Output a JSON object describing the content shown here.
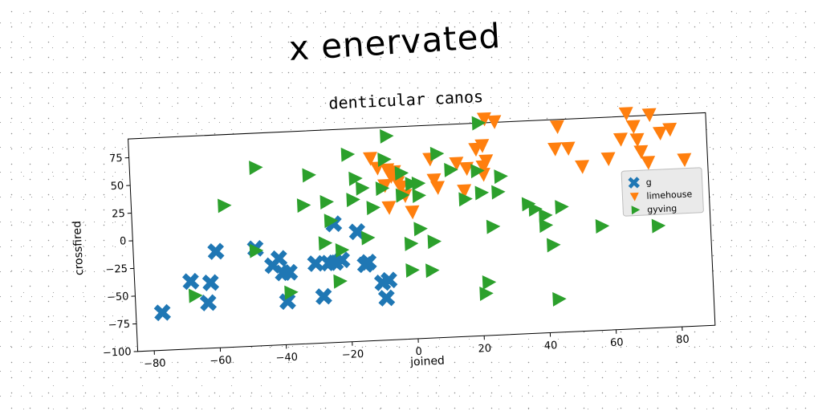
{
  "page_title": "x enervated",
  "chart_data": {
    "type": "scatter",
    "title": "denticular canos",
    "xlabel": "joined",
    "ylabel": "crossfired",
    "xlim": [
      -85,
      90
    ],
    "ylim": [
      -100,
      92
    ],
    "xticks": [
      -80,
      -60,
      -40,
      -20,
      0,
      20,
      40,
      60,
      80
    ],
    "yticks": [
      -100,
      -75,
      -50,
      -25,
      0,
      25,
      50,
      75
    ],
    "grid": false,
    "legend_position": "center-right",
    "series": [
      {
        "name": "g",
        "marker": "x",
        "color": "#1f77b4",
        "points": [
          [
            -77,
            -66
          ],
          [
            -68,
            -39
          ],
          [
            -63,
            -59
          ],
          [
            -62,
            -41
          ],
          [
            -60,
            -13
          ],
          [
            -48,
            -12
          ],
          [
            -43,
            -28
          ],
          [
            -41,
            -22
          ],
          [
            -40,
            -35
          ],
          [
            -38,
            -35
          ],
          [
            -39,
            -61
          ],
          [
            -30,
            -28
          ],
          [
            -28,
            -58
          ],
          [
            -26,
            -28
          ],
          [
            -24,
            -28
          ],
          [
            -24,
            7
          ],
          [
            -22,
            -26
          ],
          [
            -17,
            -1
          ],
          [
            -15,
            -31
          ],
          [
            -14,
            -29
          ],
          [
            -10,
            -48
          ],
          [
            -9,
            -62
          ],
          [
            -8,
            -46
          ]
        ]
      },
      {
        "name": "limehouse",
        "marker": "triangle-down",
        "color": "#ff7f0e",
        "points": [
          [
            -12,
            65
          ],
          [
            -10,
            56
          ],
          [
            -7,
            54
          ],
          [
            -6,
            48
          ],
          [
            -7,
            20
          ],
          [
            -8,
            40
          ],
          [
            -5,
            52
          ],
          [
            -4,
            42
          ],
          [
            -3,
            38
          ],
          [
            -2,
            30
          ],
          [
            0,
            15
          ],
          [
            6,
            62
          ],
          [
            7,
            43
          ],
          [
            8,
            36
          ],
          [
            14,
            57
          ],
          [
            16,
            32
          ],
          [
            17,
            52
          ],
          [
            20,
            69
          ],
          [
            22,
            72
          ],
          [
            22,
            46
          ],
          [
            23,
            58
          ],
          [
            22,
            53
          ],
          [
            23,
            96
          ],
          [
            26,
            93
          ],
          [
            44,
            66
          ],
          [
            45,
            86
          ],
          [
            48,
            66
          ],
          [
            52,
            49
          ],
          [
            60,
            55
          ],
          [
            64,
            72
          ],
          [
            66,
            95
          ],
          [
            68,
            83
          ],
          [
            69,
            71
          ],
          [
            70,
            60
          ],
          [
            72,
            50
          ],
          [
            73,
            93
          ],
          [
            76,
            76
          ],
          [
            79,
            79
          ],
          [
            83,
            51
          ]
        ]
      },
      {
        "name": "gyving",
        "marker": "triangle-right",
        "color": "#2ca02c",
        "points": [
          [
            -67,
            -52
          ],
          [
            -57,
            28
          ],
          [
            -48,
            -14
          ],
          [
            -47,
            61
          ],
          [
            -38,
            -53
          ],
          [
            -33,
            25
          ],
          [
            -31,
            52
          ],
          [
            -27,
            -10
          ],
          [
            -26,
            27
          ],
          [
            -25,
            10
          ],
          [
            -23,
            -45
          ],
          [
            -22,
            -17
          ],
          [
            -19,
            69
          ],
          [
            -18,
            28
          ],
          [
            -17,
            47
          ],
          [
            -15,
            38
          ],
          [
            -14,
            -7
          ],
          [
            -12,
            20
          ],
          [
            -9,
            37
          ],
          [
            -8,
            63
          ],
          [
            -7,
            84
          ],
          [
            -3,
            30
          ],
          [
            -3,
            50
          ],
          [
            -1,
            -38
          ],
          [
            -1,
            -14
          ],
          [
            0,
            40
          ],
          [
            2,
            -1
          ],
          [
            2,
            29
          ],
          [
            2,
            40
          ],
          [
            5,
            -39
          ],
          [
            6,
            -13
          ],
          [
            8,
            66
          ],
          [
            12,
            51
          ],
          [
            16,
            24
          ],
          [
            20,
            49
          ],
          [
            21,
            29
          ],
          [
            21,
            92
          ],
          [
            21,
            -62
          ],
          [
            22,
            -52
          ],
          [
            24,
            -2
          ],
          [
            26,
            29
          ],
          [
            27,
            43
          ],
          [
            35,
            17
          ],
          [
            37,
            12
          ],
          [
            40,
            -3
          ],
          [
            40,
            6
          ],
          [
            42,
            -21
          ],
          [
            43,
            -70
          ],
          [
            45,
            13
          ],
          [
            57,
            -6
          ],
          [
            74,
            -8
          ]
        ]
      }
    ]
  }
}
